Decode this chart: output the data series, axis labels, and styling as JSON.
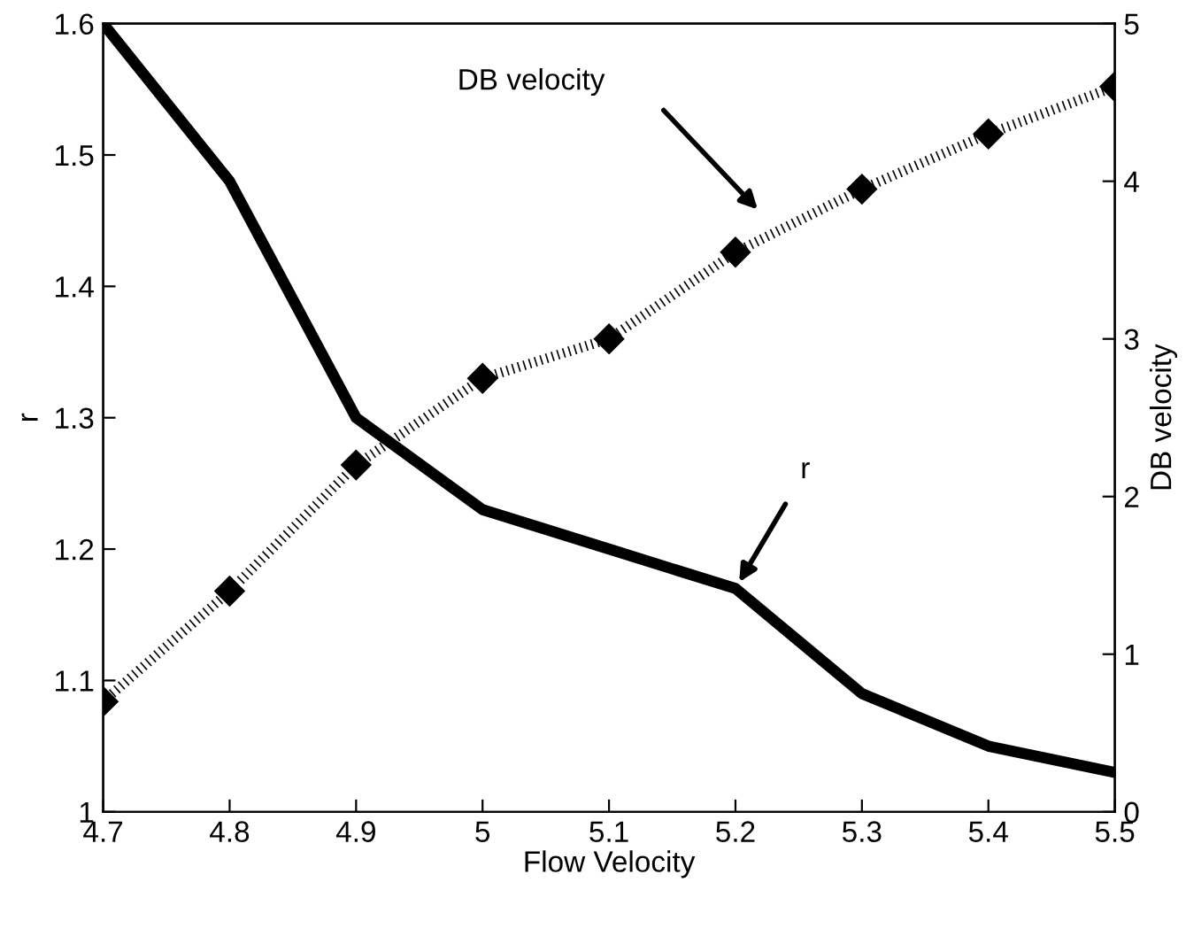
{
  "chart_data": {
    "type": "line",
    "xlabel": "Flow Velocity",
    "ylabel": "r",
    "y2label": "DB velocity",
    "x": [
      4.7,
      4.8,
      4.9,
      5.0,
      5.1,
      5.2,
      5.3,
      5.4,
      5.5
    ],
    "series": [
      {
        "color": "#000000",
        "line_style": "solid",
        "marker": "none",
        "values": [
          1.6,
          1.48,
          1.3,
          1.23,
          1.2,
          1.17,
          1.09,
          1.05,
          1.03
        ]
      },
      {
        "color": "#000000",
        "line_style": "dotted",
        "marker": "diamond",
        "axis": "y2",
        "values": [
          0.7,
          1.4,
          2.2,
          2.75,
          3.0,
          3.55,
          3.95,
          4.3,
          4.6
        ]
      }
    ],
    "xlim": [
      4.7,
      5.5
    ],
    "xticks": [
      4.7,
      4.8,
      4.9,
      5,
      5.1,
      5.2,
      5.3,
      5.4,
      5.5
    ],
    "ylim": [
      1,
      1.6
    ],
    "yticks": [
      1,
      1.1,
      1.2,
      1.3,
      1.4,
      1.5,
      1.6
    ],
    "y2lim": [
      0,
      5
    ],
    "y2ticks": [
      0,
      1,
      2,
      3,
      4,
      5
    ],
    "annotations": [
      "DB velocity",
      {
        "text": "r",
        "x": 5.2,
        "y": 1.17
      }
    ],
    "grid": false,
    "legend": false
  }
}
